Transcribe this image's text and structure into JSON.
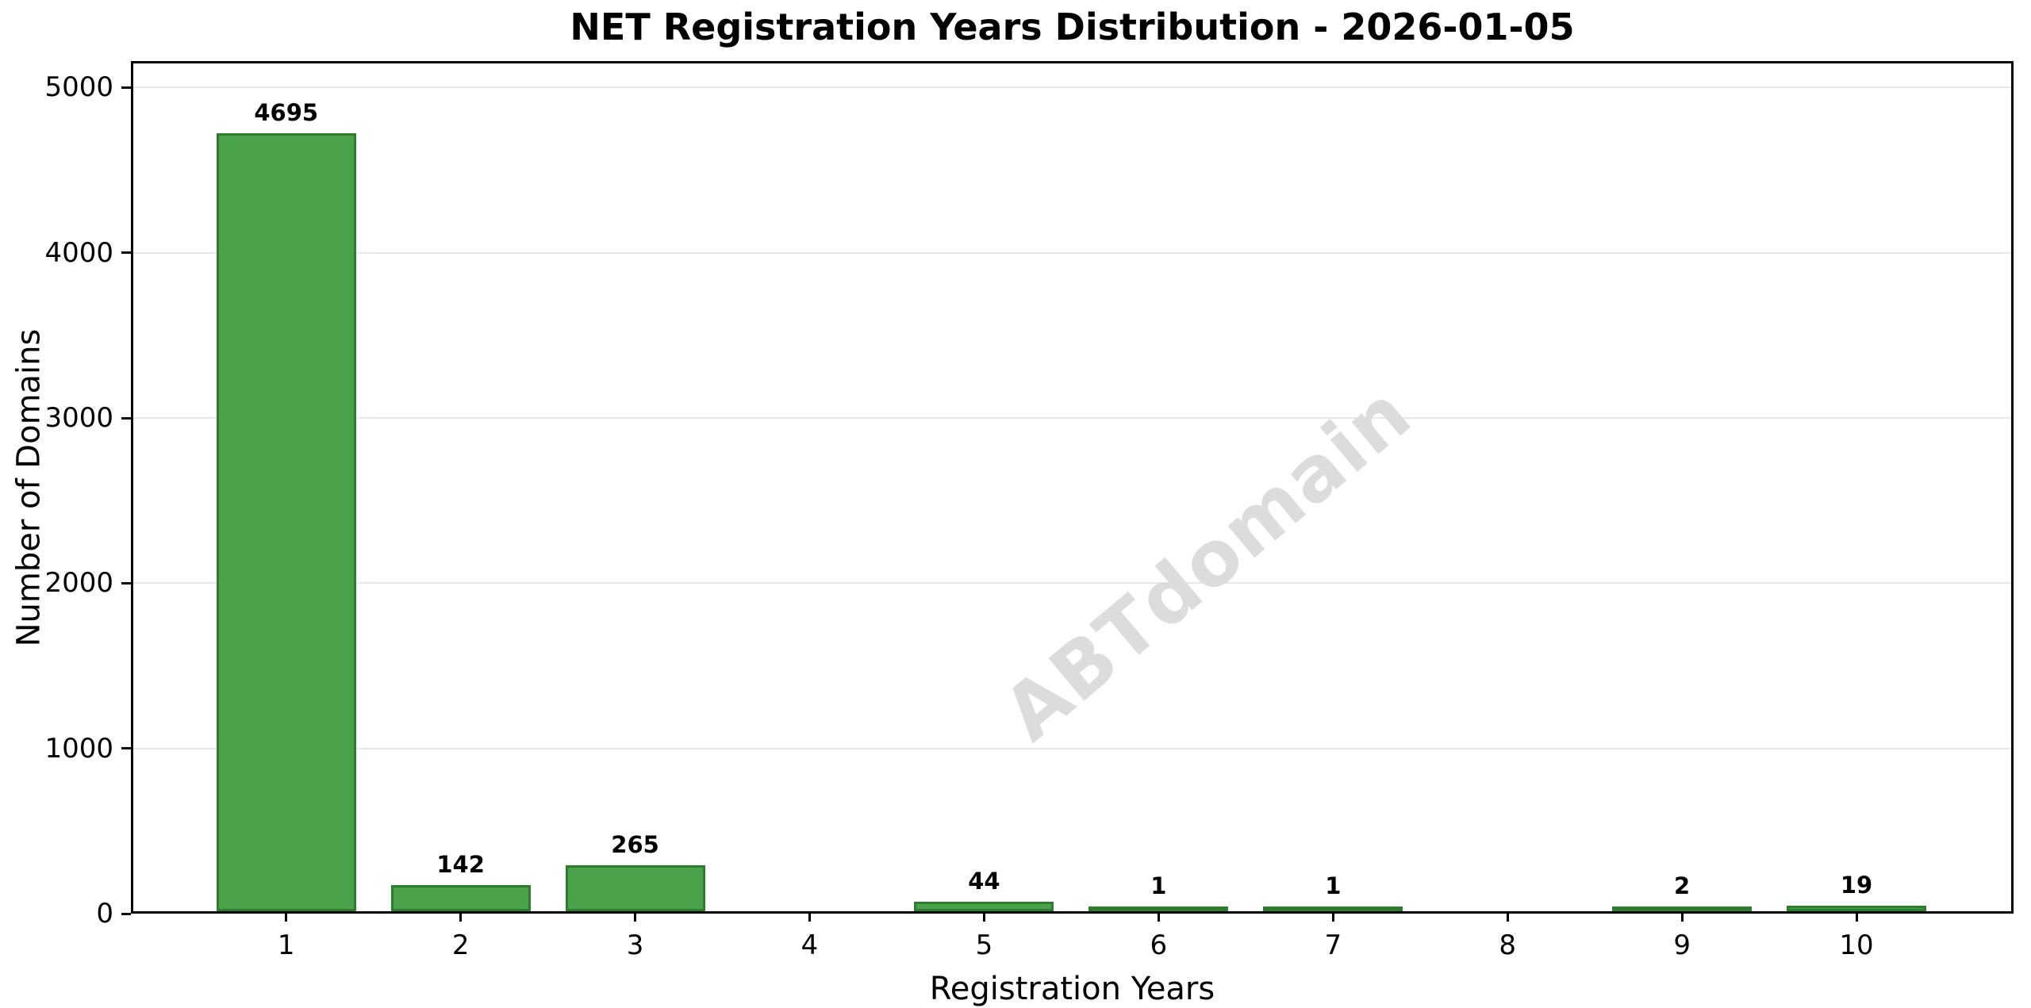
{
  "chart_data": {
    "type": "bar",
    "title": "NET Registration Years Distribution - 2026-01-05",
    "xlabel": "Registration Years",
    "ylabel": "Number of Domains",
    "categories": [
      "1",
      "2",
      "3",
      "4",
      "5",
      "6",
      "7",
      "8",
      "9",
      "10"
    ],
    "values": [
      4695,
      142,
      265,
      0,
      44,
      1,
      1,
      0,
      2,
      19
    ],
    "bar_value_labels": [
      "4695",
      "142",
      "265",
      "",
      "44",
      "1",
      "1",
      "",
      "2",
      "19"
    ],
    "yticks": [
      0,
      1000,
      2000,
      3000,
      4000,
      5000
    ],
    "ylim": [
      0,
      5160
    ],
    "xlim": [
      0.11,
      10.9
    ],
    "bar_width_units": 0.8,
    "grid": "horizontal",
    "legend": "none",
    "watermark": {
      "text": "ABTdomain",
      "rotation_deg": -40
    },
    "colors": {
      "bar_fill": "#4aa34a",
      "bar_edge": "#2e7d2e",
      "grid": "#e8e8e8",
      "spine": "#000000",
      "text": "#000000",
      "watermark": "#dcdcdc",
      "background": "#ffffff"
    }
  }
}
